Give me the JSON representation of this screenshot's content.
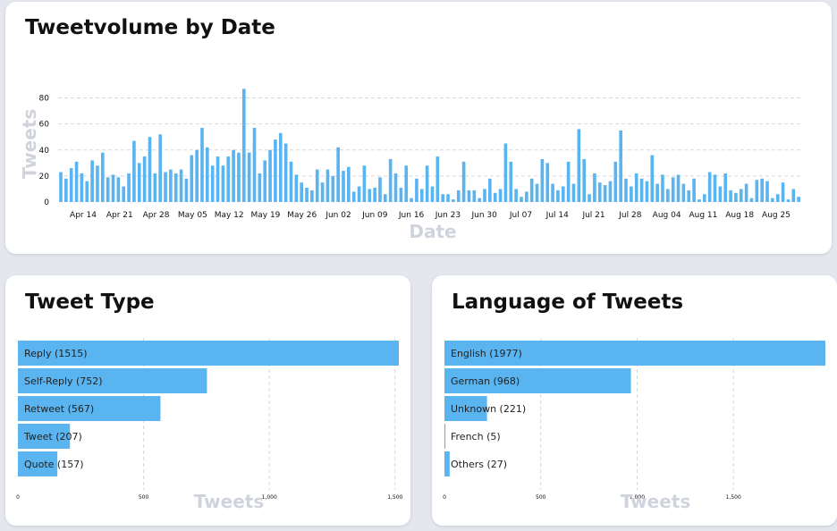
{
  "colors": {
    "bar": "#5ab4f0",
    "grid": "#d4d7de",
    "axis_title": "#cfd4dc"
  },
  "volume": {
    "title": "Tweetvolume by Date",
    "chart_data": {
      "type": "bar",
      "title": "Tweetvolume by Date",
      "xlabel": "Date",
      "ylabel": "Tweets",
      "ylim": [
        0,
        90
      ],
      "yticks": [
        0,
        20,
        40,
        60,
        80
      ],
      "grid": true,
      "x_tick_labels": [
        "Apr 14",
        "Apr 21",
        "Apr 28",
        "May 05",
        "May 12",
        "May 19",
        "May 26",
        "Jun 02",
        "Jun 09",
        "Jun 16",
        "Jun 23",
        "Jun 30",
        "Jul 07",
        "Jul 14",
        "Jul 21",
        "Jul 28",
        "Aug 04",
        "Aug 11",
        "Aug 18",
        "Aug 25"
      ],
      "values": [
        23,
        18,
        26,
        31,
        22,
        16,
        32,
        28,
        38,
        19,
        21,
        19,
        12,
        22,
        47,
        30,
        35,
        50,
        22,
        52,
        23,
        25,
        22,
        25,
        18,
        36,
        40,
        57,
        42,
        28,
        35,
        28,
        35,
        40,
        38,
        87,
        38,
        57,
        22,
        32,
        40,
        48,
        53,
        45,
        31,
        21,
        15,
        11,
        9,
        25,
        15,
        25,
        20,
        42,
        24,
        27,
        8,
        12,
        28,
        10,
        11,
        19,
        6,
        33,
        22,
        11,
        28,
        3,
        18,
        10,
        28,
        12,
        35,
        6,
        6,
        2,
        9,
        31,
        9,
        9,
        3,
        10,
        18,
        7,
        10,
        45,
        31,
        10,
        4,
        8,
        18,
        14,
        33,
        30,
        14,
        9,
        12,
        31,
        14,
        56,
        33,
        6,
        22,
        15,
        13,
        16,
        31,
        55,
        18,
        12,
        22,
        18,
        16,
        36,
        14,
        21,
        10,
        19,
        21,
        14,
        9,
        18,
        2,
        6,
        23,
        21,
        12,
        22,
        9,
        7,
        10,
        14,
        3,
        17,
        18,
        16,
        3,
        6,
        15,
        2,
        10,
        4
      ]
    }
  },
  "type": {
    "title": "Tweet Type",
    "chart_data": {
      "type": "bar",
      "orientation": "horizontal",
      "title": "Tweet Type",
      "xlabel": "Tweets",
      "xlim": [
        0,
        1515
      ],
      "xticks": [
        0,
        500,
        1000,
        1500
      ],
      "xtick_labels": [
        "0",
        "500",
        "1,000",
        "1,500"
      ],
      "categories": [
        "Reply (1515)",
        "Self-Reply (752)",
        "Retweet (567)",
        "Tweet (207)",
        "Quote (157)"
      ],
      "values": [
        1515,
        752,
        567,
        207,
        157
      ]
    }
  },
  "language": {
    "title": "Language of Tweets",
    "chart_data": {
      "type": "bar",
      "orientation": "horizontal",
      "title": "Language of Tweets",
      "xlabel": "Tweets",
      "xlim": [
        0,
        1977
      ],
      "xticks": [
        0,
        500,
        1000,
        1500
      ],
      "xtick_labels": [
        "0",
        "500",
        "1,000",
        "1,500"
      ],
      "categories": [
        "English (1977)",
        "German (968)",
        "Unknown (221)",
        "French (5)",
        "Others (27)"
      ],
      "values": [
        1977,
        968,
        221,
        5,
        27
      ]
    }
  }
}
